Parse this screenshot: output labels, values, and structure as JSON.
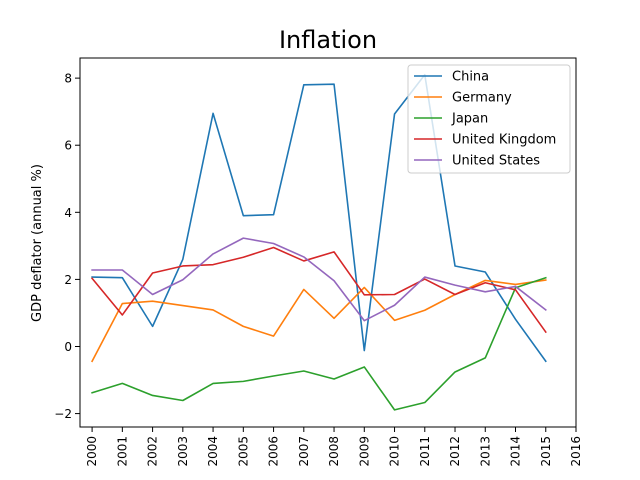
{
  "chart_data": {
    "type": "line",
    "title": "Inflation",
    "xlabel": "",
    "ylabel": "GDP deflator (annual %)",
    "xlim": [
      1999.6,
      2016
    ],
    "ylim": [
      -2.4,
      8.6
    ],
    "x_ticks": [
      2000,
      2001,
      2002,
      2003,
      2004,
      2005,
      2006,
      2007,
      2008,
      2009,
      2010,
      2011,
      2012,
      2013,
      2014,
      2015,
      2016
    ],
    "y_ticks": [
      -2,
      0,
      2,
      4,
      6,
      8
    ],
    "y_tick_labels": [
      "−2",
      "0",
      "2",
      "4",
      "6",
      "8"
    ],
    "grid": false,
    "legend_position": "top-right",
    "x": [
      2000,
      2001,
      2002,
      2003,
      2004,
      2005,
      2006,
      2007,
      2008,
      2009,
      2010,
      2011,
      2012,
      2013,
      2014,
      2015
    ],
    "series": [
      {
        "name": "China",
        "color": "#1f77b4",
        "values": [
          2.07,
          2.05,
          0.6,
          2.6,
          6.95,
          3.9,
          3.93,
          7.8,
          7.82,
          -0.12,
          6.93,
          8.1,
          2.4,
          2.22,
          0.81,
          -0.44
        ]
      },
      {
        "name": "Germany",
        "color": "#ff7f0e",
        "values": [
          -0.44,
          1.28,
          1.35,
          1.22,
          1.09,
          0.6,
          0.31,
          1.7,
          0.84,
          1.76,
          0.78,
          1.08,
          1.55,
          1.97,
          1.85,
          1.98
        ]
      },
      {
        "name": "Japan",
        "color": "#2ca02c",
        "values": [
          -1.38,
          -1.1,
          -1.46,
          -1.61,
          -1.1,
          -1.04,
          -0.88,
          -0.73,
          -0.97,
          -0.61,
          -1.89,
          -1.67,
          -0.76,
          -0.34,
          1.75,
          2.05
        ]
      },
      {
        "name": "United Kingdom",
        "color": "#d62728",
        "values": [
          2.03,
          0.94,
          2.19,
          2.4,
          2.44,
          2.66,
          2.95,
          2.55,
          2.82,
          1.54,
          1.55,
          2.01,
          1.55,
          1.9,
          1.69,
          0.43
        ]
      },
      {
        "name": "United States",
        "color": "#9467bd",
        "values": [
          2.28,
          2.28,
          1.55,
          1.99,
          2.76,
          3.23,
          3.07,
          2.67,
          1.96,
          0.77,
          1.23,
          2.07,
          1.83,
          1.63,
          1.79,
          1.09
        ]
      }
    ]
  }
}
